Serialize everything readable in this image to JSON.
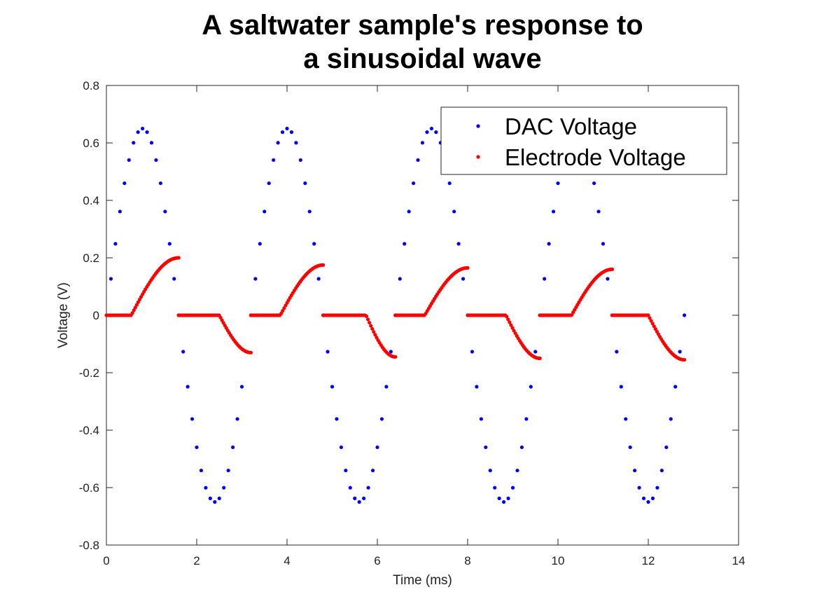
{
  "chart_data": {
    "type": "scatter",
    "title": [
      "A saltwater sample's response to",
      "a sinusoidal wave"
    ],
    "xlabel": "Time (ms)",
    "ylabel": "Voltage (V)",
    "xlim": [
      0,
      14
    ],
    "ylim": [
      -0.8,
      0.8
    ],
    "xticks": [
      0,
      2,
      4,
      6,
      8,
      10,
      12,
      14
    ],
    "yticks": [
      -0.8,
      -0.6,
      -0.4,
      -0.2,
      0,
      0.2,
      0.4,
      0.6,
      0.8
    ],
    "grid": false,
    "legend_position": "top-right",
    "series": [
      {
        "name": "DAC Voltage",
        "color": "#0000ff",
        "model": "sine",
        "amplitude": 0.65,
        "period_ms": 3.2,
        "x_start": 0,
        "x_end": 12.8,
        "sample_step_ms": 0.1
      },
      {
        "name": "Electrode Voltage",
        "color": "#ff0000",
        "model": "clipped-response",
        "sample_step_ms": 0.032,
        "half_cycles": [
          {
            "start": 0.0,
            "end": 1.6,
            "sign": 1,
            "flat_until": 0.55,
            "peak": 0.2
          },
          {
            "start": 1.6,
            "end": 3.2,
            "sign": -1,
            "flat_until": 2.5,
            "peak": 0.13
          },
          {
            "start": 3.2,
            "end": 4.8,
            "sign": 1,
            "flat_until": 3.85,
            "peak": 0.175
          },
          {
            "start": 4.8,
            "end": 6.4,
            "sign": -1,
            "flat_until": 5.75,
            "peak": 0.145
          },
          {
            "start": 6.4,
            "end": 8.0,
            "sign": 1,
            "flat_until": 7.05,
            "peak": 0.165
          },
          {
            "start": 8.0,
            "end": 9.6,
            "sign": -1,
            "flat_until": 8.85,
            "peak": 0.15
          },
          {
            "start": 9.6,
            "end": 11.2,
            "sign": 1,
            "flat_until": 10.3,
            "peak": 0.16
          },
          {
            "start": 11.2,
            "end": 12.8,
            "sign": -1,
            "flat_until": 12.0,
            "peak": 0.155
          }
        ]
      }
    ]
  }
}
